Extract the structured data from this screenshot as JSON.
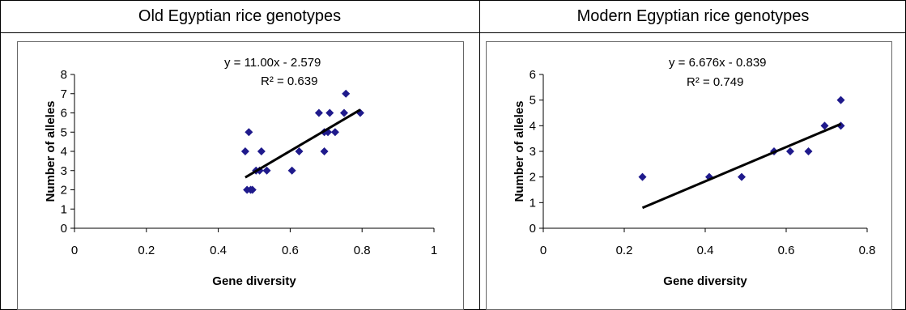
{
  "headers": {
    "left": "Old Egyptian rice genotypes",
    "right": "Modern Egyptian rice genotypes"
  },
  "chart_data": [
    {
      "type": "scatter",
      "xlabel": "Gene diversity",
      "ylabel": "Number of alleles",
      "xlim": [
        0,
        1
      ],
      "ylim": [
        0,
        8
      ],
      "xticks": [
        "0",
        "0.2",
        "0.4",
        "0.6",
        "0.8",
        "1"
      ],
      "yticks": [
        "0",
        "1",
        "2",
        "3",
        "4",
        "5",
        "6",
        "7",
        "8"
      ],
      "marker_color": "#1f1a8c",
      "trendline_color": "#000000",
      "equation": "y = 11.00x - 2.579",
      "r_squared": "R² = 0.639",
      "trendline": {
        "slope": 11.0,
        "intercept": -2.579,
        "x_range": [
          0.475,
          0.795
        ]
      },
      "points": [
        {
          "x": 0.475,
          "y": 4
        },
        {
          "x": 0.48,
          "y": 2
        },
        {
          "x": 0.485,
          "y": 5
        },
        {
          "x": 0.49,
          "y": 2
        },
        {
          "x": 0.495,
          "y": 2
        },
        {
          "x": 0.505,
          "y": 3
        },
        {
          "x": 0.515,
          "y": 3
        },
        {
          "x": 0.52,
          "y": 4
        },
        {
          "x": 0.535,
          "y": 3
        },
        {
          "x": 0.605,
          "y": 3
        },
        {
          "x": 0.625,
          "y": 4
        },
        {
          "x": 0.68,
          "y": 6
        },
        {
          "x": 0.695,
          "y": 5
        },
        {
          "x": 0.695,
          "y": 4
        },
        {
          "x": 0.705,
          "y": 5
        },
        {
          "x": 0.71,
          "y": 6
        },
        {
          "x": 0.725,
          "y": 5
        },
        {
          "x": 0.75,
          "y": 6
        },
        {
          "x": 0.755,
          "y": 7
        },
        {
          "x": 0.795,
          "y": 6
        }
      ]
    },
    {
      "type": "scatter",
      "xlabel": "Gene diversity",
      "ylabel": "Number of alleles",
      "xlim": [
        0,
        0.8
      ],
      "ylim": [
        0,
        6
      ],
      "xticks": [
        "0",
        "0.2",
        "0.4",
        "0.6",
        "0.8"
      ],
      "yticks": [
        "0",
        "1",
        "2",
        "3",
        "4",
        "5",
        "6"
      ],
      "marker_color": "#1f1a8c",
      "trendline_color": "#000000",
      "equation": "y = 6.676x - 0.839",
      "r_squared": "R² = 0.749",
      "trendline": {
        "slope": 6.676,
        "intercept": -0.839,
        "x_range": [
          0.245,
          0.735
        ]
      },
      "points": [
        {
          "x": 0.245,
          "y": 2
        },
        {
          "x": 0.41,
          "y": 2
        },
        {
          "x": 0.49,
          "y": 2
        },
        {
          "x": 0.57,
          "y": 3
        },
        {
          "x": 0.61,
          "y": 3
        },
        {
          "x": 0.655,
          "y": 3
        },
        {
          "x": 0.695,
          "y": 4
        },
        {
          "x": 0.735,
          "y": 4
        },
        {
          "x": 0.735,
          "y": 5
        }
      ]
    }
  ]
}
